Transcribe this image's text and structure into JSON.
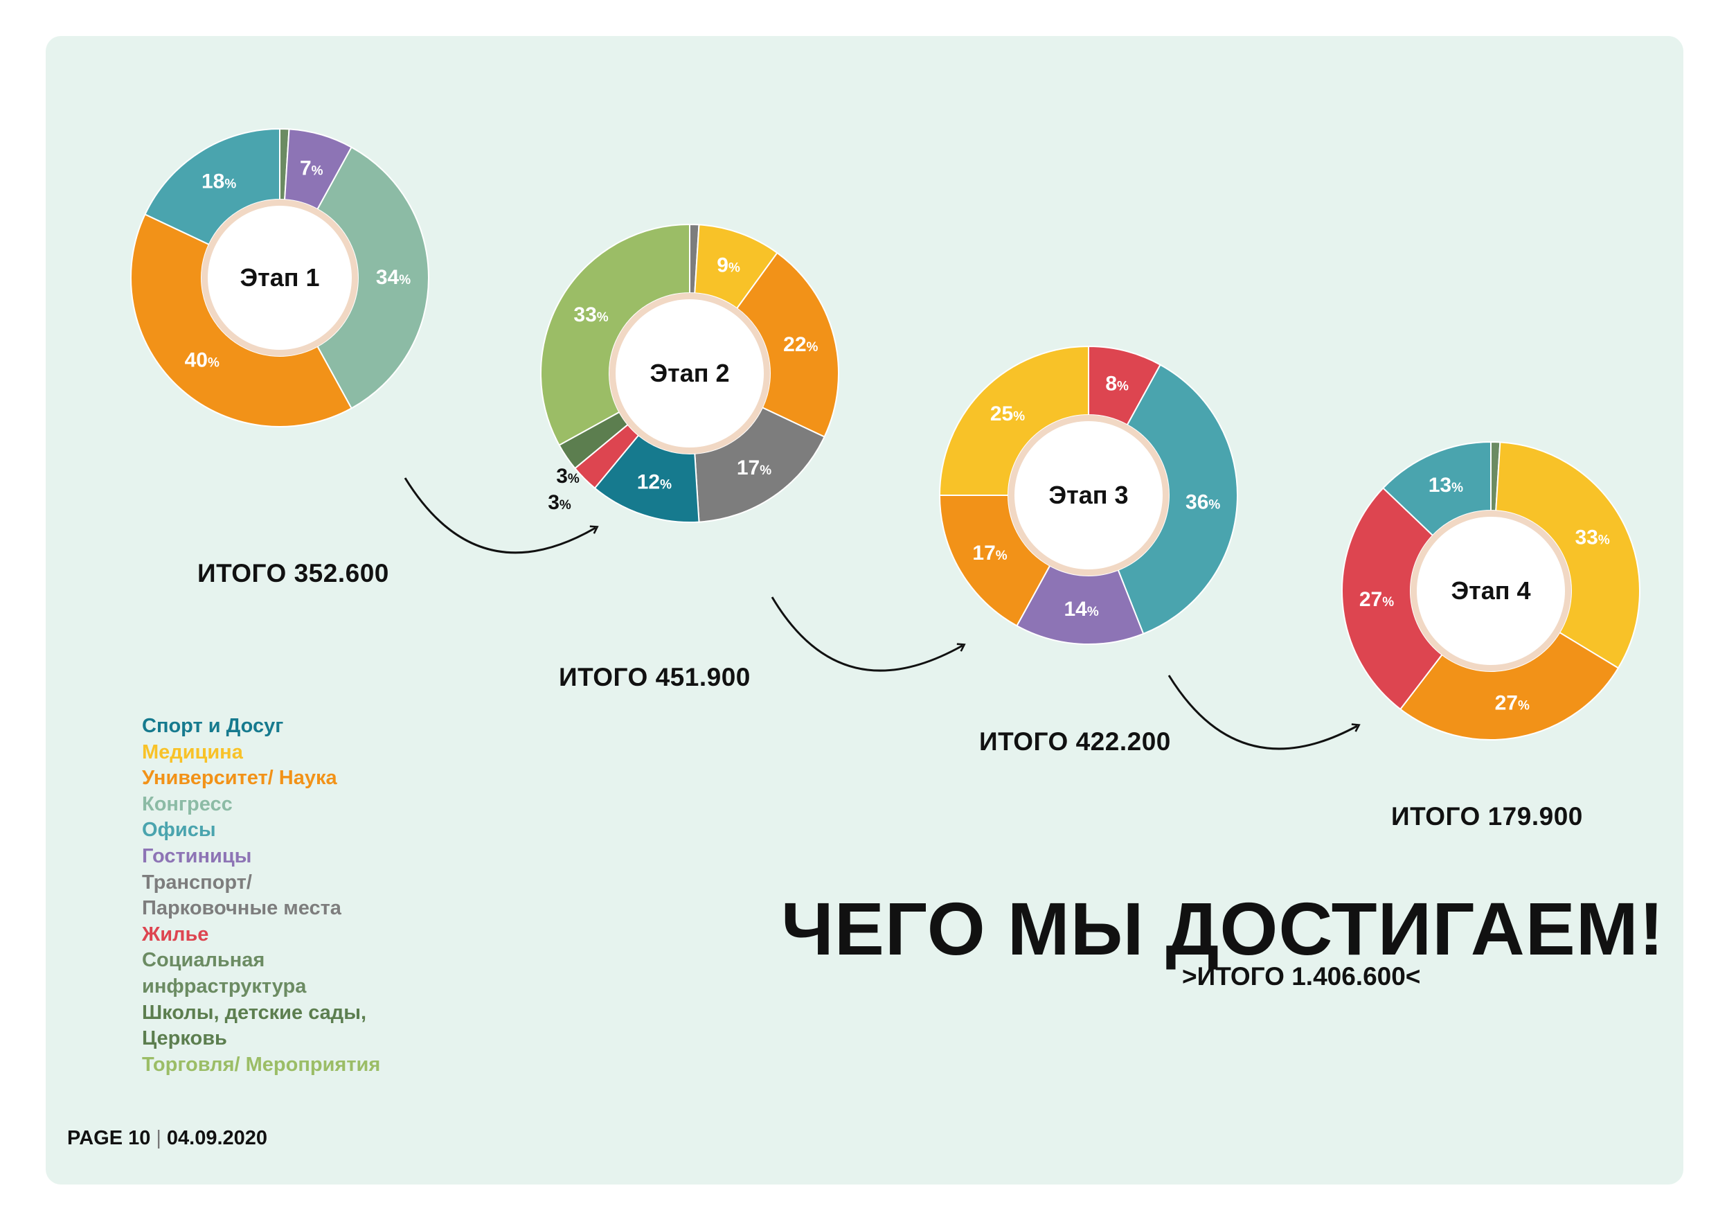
{
  "colors": {
    "panel_bg": "#e6f3ee",
    "sport": "#167a8e",
    "medicine": "#f8c228",
    "university": "#f29218",
    "congress": "#8cbba5",
    "offices": "#4aa4ae",
    "hotels": "#8d74b5",
    "transport": "#7d7d7d",
    "housing": "#dd4550",
    "social": "#6b8b62",
    "schools": "#5c7e4f",
    "trade": "#9bbd66"
  },
  "legend": [
    {
      "label": "Спорт и Досуг",
      "color": "#167a8e"
    },
    {
      "label": "Медицина",
      "color": "#f8c228"
    },
    {
      "label": "Университет/ Наука",
      "color": "#f29218"
    },
    {
      "label": "Конгресс",
      "color": "#8cbba5"
    },
    {
      "label": "Офисы",
      "color": "#4aa4ae"
    },
    {
      "label": "Гостиницы",
      "color": "#8d74b5"
    },
    {
      "label": "Транспорт/",
      "color": "#7d7d7d"
    },
    {
      "label": "Парковочные места",
      "color": "#7d7d7d"
    },
    {
      "label": "Жилье",
      "color": "#dd4550"
    },
    {
      "label": "Социальная",
      "color": "#6b8b62"
    },
    {
      "label": "инфраструктура",
      "color": "#6b8b62"
    },
    {
      "label": "Школы, детские сады,",
      "color": "#5c7e4f"
    },
    {
      "label": "Церковь",
      "color": "#5c7e4f"
    },
    {
      "label": "Торговля/ Мероприятия",
      "color": "#9bbd66"
    }
  ],
  "chart_data": [
    {
      "type": "pie",
      "title": "Этап 1",
      "total_label": "ИТОГО 352.600",
      "slices": [
        {
          "category": "Социальная инфраструктура",
          "value": 1,
          "label": "",
          "color": "#6b8b62"
        },
        {
          "category": "Гостиницы",
          "value": 7,
          "label": "7",
          "color": "#8d74b5"
        },
        {
          "category": "Конгресс",
          "value": 34,
          "label": "34",
          "color": "#8cbba5"
        },
        {
          "category": "Университет/ Наука",
          "value": 40,
          "label": "40",
          "color": "#f29218"
        },
        {
          "category": "Офисы",
          "value": 18,
          "label": "18",
          "color": "#4aa4ae"
        }
      ]
    },
    {
      "type": "pie",
      "title": "Этап 2",
      "total_label": "ИТОГО 451.900",
      "slices": [
        {
          "category": "Транспорт/ Парковочные места",
          "value": 1,
          "label": "",
          "color": "#7d7d7d"
        },
        {
          "category": "Медицина",
          "value": 9,
          "label": "9",
          "color": "#f8c228"
        },
        {
          "category": "Университет/ Наука",
          "value": 22,
          "label": "22",
          "color": "#f29218"
        },
        {
          "category": "Транспорт/ Парковочные места",
          "value": 17,
          "label": "17",
          "color": "#7d7d7d"
        },
        {
          "category": "Спорт и Досуг",
          "value": 12,
          "label": "12",
          "color": "#167a8e"
        },
        {
          "category": "Жилье",
          "value": 3,
          "label": "3",
          "color": "#dd4550"
        },
        {
          "category": "Школы, детские сады, Церковь",
          "value": 3,
          "label": "3",
          "color": "#5c7e4f"
        },
        {
          "category": "Торговля/ Мероприятия",
          "value": 33,
          "label": "33",
          "color": "#9bbd66"
        }
      ]
    },
    {
      "type": "pie",
      "title": "Этап 3",
      "total_label": "ИТОГО 422.200",
      "slices": [
        {
          "category": "Жилье",
          "value": 8,
          "label": "8",
          "color": "#dd4550"
        },
        {
          "category": "Офисы",
          "value": 36,
          "label": "36",
          "color": "#4aa4ae"
        },
        {
          "category": "Гостиницы",
          "value": 14,
          "label": "14",
          "color": "#8d74b5"
        },
        {
          "category": "Университет/ Наука",
          "value": 17,
          "label": "17",
          "color": "#f29218"
        },
        {
          "category": "Медицина",
          "value": 25,
          "label": "25",
          "color": "#f8c228"
        }
      ]
    },
    {
      "type": "pie",
      "title": "Этап 4",
      "total_label": "ИТОГО 179.900",
      "slices": [
        {
          "category": "Социальная инфраструктура",
          "value": 1,
          "label": "",
          "color": "#6b8b62"
        },
        {
          "category": "Медицина",
          "value": 33,
          "label": "33",
          "color": "#f8c228"
        },
        {
          "category": "Университет/ Наука",
          "value": 27,
          "label": "27",
          "color": "#f29218"
        },
        {
          "category": "Жилье",
          "value": 27,
          "label": "27",
          "color": "#dd4550"
        },
        {
          "category": "Офисы",
          "value": 13,
          "label": "13",
          "color": "#4aa4ae"
        }
      ]
    }
  ],
  "percent_sign": "%",
  "headline": "ЧЕГО МЫ ДОСТИГАЕМ!",
  "grand_total": ">ИТОГО 1.406.600<",
  "footer": {
    "page": "PAGE 10",
    "separator": "|",
    "date": "04.09.2020"
  }
}
